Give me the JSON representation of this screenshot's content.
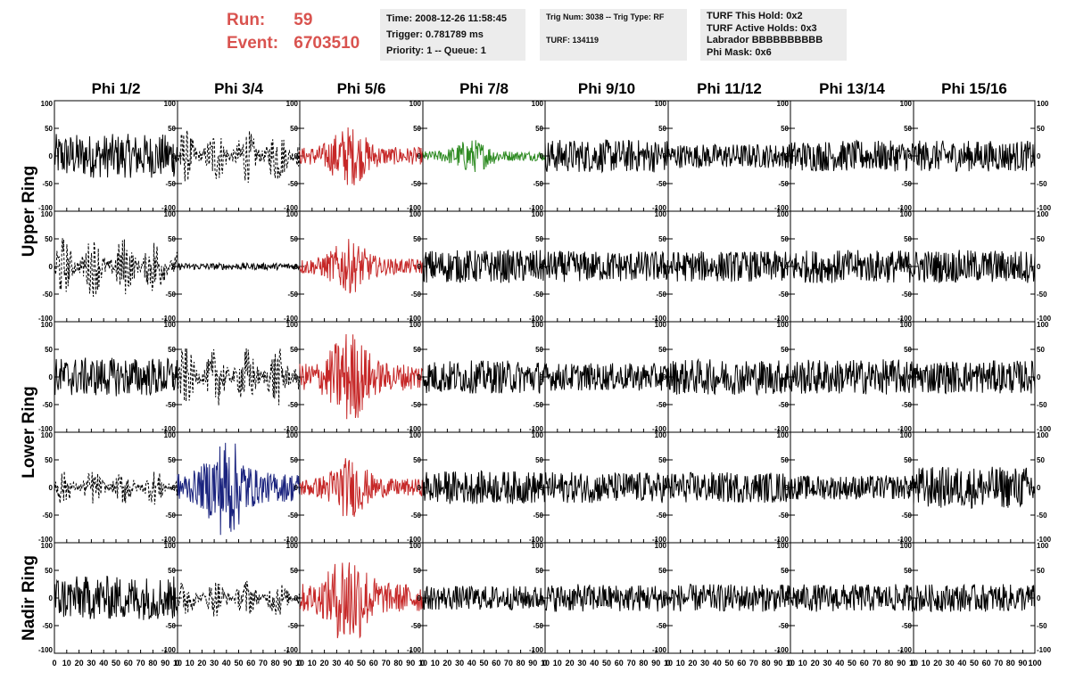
{
  "header": {
    "run_label": "Run:",
    "run_value": "59",
    "event_label": "Event:",
    "event_value": "6703510"
  },
  "info_box_1": {
    "time": "Time: 2008-12-26 11:58:45",
    "trigger": "Trigger: 0.781789 ms",
    "priority": "Priority: 1 -- Queue: 1"
  },
  "info_box_2": {
    "trig": "Trig Num: 3038 -- Trig Type: RF",
    "turf": "TURF: 134119"
  },
  "info_box_3": {
    "this_hold": "TURF This Hold: 0x2",
    "active_holds": "TURF Active Holds: 0x3",
    "labrador": "Labrador BBBBBBBBBB",
    "phi_mask": "Phi Mask: 0x6"
  },
  "colors": {
    "normal": "#000000",
    "triggered_red": "#c62828",
    "triggered_green": "#2e8b22",
    "triggered_blue": "#1a237e"
  },
  "chart_data": {
    "type": "line",
    "columns": [
      "Phi 1/2",
      "Phi 3/4",
      "Phi 5/6",
      "Phi 7/8",
      "Phi 9/10",
      "Phi 11/12",
      "Phi 13/14",
      "Phi 15/16"
    ],
    "ring_labels": [
      "Upper Ring",
      "Lower Ring",
      "Nadir Ring"
    ],
    "rows": 5,
    "ylim": [
      -100,
      100
    ],
    "xlim": [
      0,
      100
    ],
    "y_ticks": [
      "100",
      "50",
      "0",
      "-50",
      "-100"
    ],
    "x_ticks": [
      "0",
      "10",
      "20",
      "30",
      "40",
      "50",
      "60",
      "70",
      "80",
      "90",
      "100"
    ],
    "x_tick_label_text": [
      "0",
      "10",
      "20",
      "30",
      "40",
      "50",
      "60",
      "70",
      "80",
      "90",
      "10"
    ],
    "last_x_tick_label_text": [
      "0",
      "10",
      "20",
      "30",
      "40",
      "50",
      "60",
      "70",
      "80",
      "90",
      "100"
    ],
    "waveforms": [
      [
        {
          "color": "#000000",
          "dashed": false,
          "amp": 40,
          "burst": false
        },
        {
          "color": "#000000",
          "dashed": true,
          "amp": 50,
          "burst": false
        },
        {
          "color": "#c62828",
          "dashed": false,
          "amp": 45,
          "burst": true
        },
        {
          "color": "#2e8b22",
          "dashed": false,
          "amp": 25,
          "burst": true
        },
        {
          "color": "#000000",
          "dashed": false,
          "amp": 30,
          "burst": false
        },
        {
          "color": "#000000",
          "dashed": false,
          "amp": 22,
          "burst": false
        },
        {
          "color": "#000000",
          "dashed": false,
          "amp": 28,
          "burst": false
        },
        {
          "color": "#000000",
          "dashed": false,
          "amp": 28,
          "burst": false
        }
      ],
      [
        {
          "color": "#000000",
          "dashed": true,
          "amp": 55,
          "burst": false
        },
        {
          "color": "#000000",
          "dashed": false,
          "amp": 6,
          "burst": false
        },
        {
          "color": "#c62828",
          "dashed": false,
          "amp": 40,
          "burst": true
        },
        {
          "color": "#000000",
          "dashed": false,
          "amp": 30,
          "burst": false
        },
        {
          "color": "#000000",
          "dashed": false,
          "amp": 28,
          "burst": false
        },
        {
          "color": "#000000",
          "dashed": false,
          "amp": 28,
          "burst": false
        },
        {
          "color": "#000000",
          "dashed": false,
          "amp": 30,
          "burst": false
        },
        {
          "color": "#000000",
          "dashed": false,
          "amp": 30,
          "burst": false
        }
      ],
      [
        {
          "color": "#000000",
          "dashed": false,
          "amp": 35,
          "burst": false
        },
        {
          "color": "#000000",
          "dashed": true,
          "amp": 55,
          "burst": false
        },
        {
          "color": "#c62828",
          "dashed": false,
          "amp": 70,
          "burst": true
        },
        {
          "color": "#000000",
          "dashed": false,
          "amp": 30,
          "burst": false
        },
        {
          "color": "#000000",
          "dashed": false,
          "amp": 25,
          "burst": false
        },
        {
          "color": "#000000",
          "dashed": false,
          "amp": 32,
          "burst": false
        },
        {
          "color": "#000000",
          "dashed": false,
          "amp": 32,
          "burst": false
        },
        {
          "color": "#000000",
          "dashed": false,
          "amp": 30,
          "burst": false
        }
      ],
      [
        {
          "color": "#000000",
          "dashed": true,
          "amp": 32,
          "burst": false
        },
        {
          "color": "#1a237e",
          "dashed": false,
          "amp": 75,
          "burst": true
        },
        {
          "color": "#c62828",
          "dashed": false,
          "amp": 45,
          "burst": true
        },
        {
          "color": "#000000",
          "dashed": false,
          "amp": 30,
          "burst": false
        },
        {
          "color": "#000000",
          "dashed": false,
          "amp": 28,
          "burst": false
        },
        {
          "color": "#000000",
          "dashed": false,
          "amp": 28,
          "burst": false
        },
        {
          "color": "#000000",
          "dashed": false,
          "amp": 22,
          "burst": false
        },
        {
          "color": "#000000",
          "dashed": false,
          "amp": 38,
          "burst": false
        }
      ],
      [
        {
          "color": "#000000",
          "dashed": false,
          "amp": 40,
          "burst": false
        },
        {
          "color": "#000000",
          "dashed": true,
          "amp": 35,
          "burst": false
        },
        {
          "color": "#c62828",
          "dashed": false,
          "amp": 75,
          "burst": true
        },
        {
          "color": "#000000",
          "dashed": false,
          "amp": 22,
          "burst": false
        },
        {
          "color": "#000000",
          "dashed": false,
          "amp": 25,
          "burst": false
        },
        {
          "color": "#000000",
          "dashed": false,
          "amp": 25,
          "burst": false
        },
        {
          "color": "#000000",
          "dashed": false,
          "amp": 25,
          "burst": false
        },
        {
          "color": "#000000",
          "dashed": false,
          "amp": 25,
          "burst": false
        }
      ]
    ]
  }
}
